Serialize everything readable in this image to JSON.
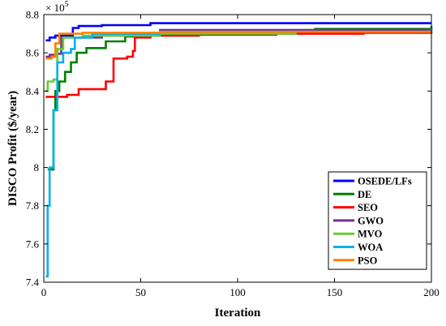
{
  "chart_data": {
    "type": "line",
    "title": "",
    "xlabel": "Iteration",
    "ylabel": "DISCO Profit ($/year)",
    "y_exponent_base": "× 10",
    "y_exponent_power": "5",
    "xlim": [
      0,
      200
    ],
    "ylim": [
      7.4,
      8.8
    ],
    "xticks": [
      0,
      50,
      100,
      150,
      200
    ],
    "yticks": [
      7.4,
      7.6,
      7.8,
      8.0,
      8.2,
      8.4,
      8.6,
      8.8
    ],
    "ytick_labels": [
      "7.4",
      "7.6",
      "7.8",
      "8",
      "8.2",
      "8.4",
      "8.6",
      "8.8"
    ],
    "legend_position": "bottom-right",
    "series": [
      {
        "name": "OSEDE/LFs",
        "color": "#0000ff",
        "points": [
          [
            1,
            8.665
          ],
          [
            3,
            8.68
          ],
          [
            6,
            8.69
          ],
          [
            10,
            8.69
          ],
          [
            15,
            8.73
          ],
          [
            18,
            8.74
          ],
          [
            30,
            8.745
          ],
          [
            55,
            8.755
          ],
          [
            200,
            8.755
          ]
        ]
      },
      {
        "name": "DE",
        "color": "#008000",
        "points": [
          [
            2,
            7.99
          ],
          [
            4,
            7.99
          ],
          [
            5,
            8.3
          ],
          [
            6,
            8.4
          ],
          [
            8,
            8.45
          ],
          [
            11,
            8.5
          ],
          [
            14,
            8.55
          ],
          [
            17,
            8.6
          ],
          [
            22,
            8.625
          ],
          [
            32,
            8.66
          ],
          [
            42,
            8.685
          ],
          [
            55,
            8.7
          ],
          [
            90,
            8.71
          ],
          [
            140,
            8.725
          ],
          [
            200,
            8.74
          ]
        ]
      },
      {
        "name": "SEO",
        "color": "#ff0000",
        "points": [
          [
            1,
            8.37
          ],
          [
            10,
            8.37
          ],
          [
            12,
            8.38
          ],
          [
            18,
            8.41
          ],
          [
            30,
            8.41
          ],
          [
            32,
            8.45
          ],
          [
            35,
            8.45
          ],
          [
            36,
            8.57
          ],
          [
            43,
            8.58
          ],
          [
            46,
            8.61
          ],
          [
            47,
            8.68
          ],
          [
            55,
            8.69
          ],
          [
            80,
            8.695
          ],
          [
            120,
            8.7
          ],
          [
            165,
            8.705
          ],
          [
            200,
            8.71
          ]
        ]
      },
      {
        "name": "GWO",
        "color": "#7030a0",
        "points": [
          [
            1,
            8.58
          ],
          [
            3,
            8.59
          ],
          [
            6,
            8.595
          ],
          [
            9,
            8.68
          ],
          [
            30,
            8.69
          ],
          [
            60,
            8.72
          ],
          [
            200,
            8.73
          ]
        ]
      },
      {
        "name": "MVO",
        "color": "#66cc33",
        "points": [
          [
            1,
            8.4
          ],
          [
            2,
            8.45
          ],
          [
            5,
            8.46
          ],
          [
            7,
            8.62
          ],
          [
            10,
            8.68
          ],
          [
            20,
            8.69
          ],
          [
            60,
            8.7
          ],
          [
            130,
            8.71
          ],
          [
            200,
            8.73
          ]
        ]
      },
      {
        "name": "WOA",
        "color": "#00b0f0",
        "points": [
          [
            1,
            7.43
          ],
          [
            2,
            7.8
          ],
          [
            3,
            8.0
          ],
          [
            5,
            8.3
          ],
          [
            7,
            8.55
          ],
          [
            10,
            8.6
          ],
          [
            14,
            8.62
          ],
          [
            16,
            8.68
          ],
          [
            25,
            8.7
          ],
          [
            60,
            8.71
          ],
          [
            200,
            8.72
          ]
        ]
      },
      {
        "name": "PSO",
        "color": "#ff8000",
        "points": [
          [
            1,
            8.57
          ],
          [
            4,
            8.58
          ],
          [
            6,
            8.65
          ],
          [
            8,
            8.7
          ],
          [
            20,
            8.705
          ],
          [
            60,
            8.71
          ],
          [
            200,
            8.71
          ]
        ]
      }
    ]
  }
}
